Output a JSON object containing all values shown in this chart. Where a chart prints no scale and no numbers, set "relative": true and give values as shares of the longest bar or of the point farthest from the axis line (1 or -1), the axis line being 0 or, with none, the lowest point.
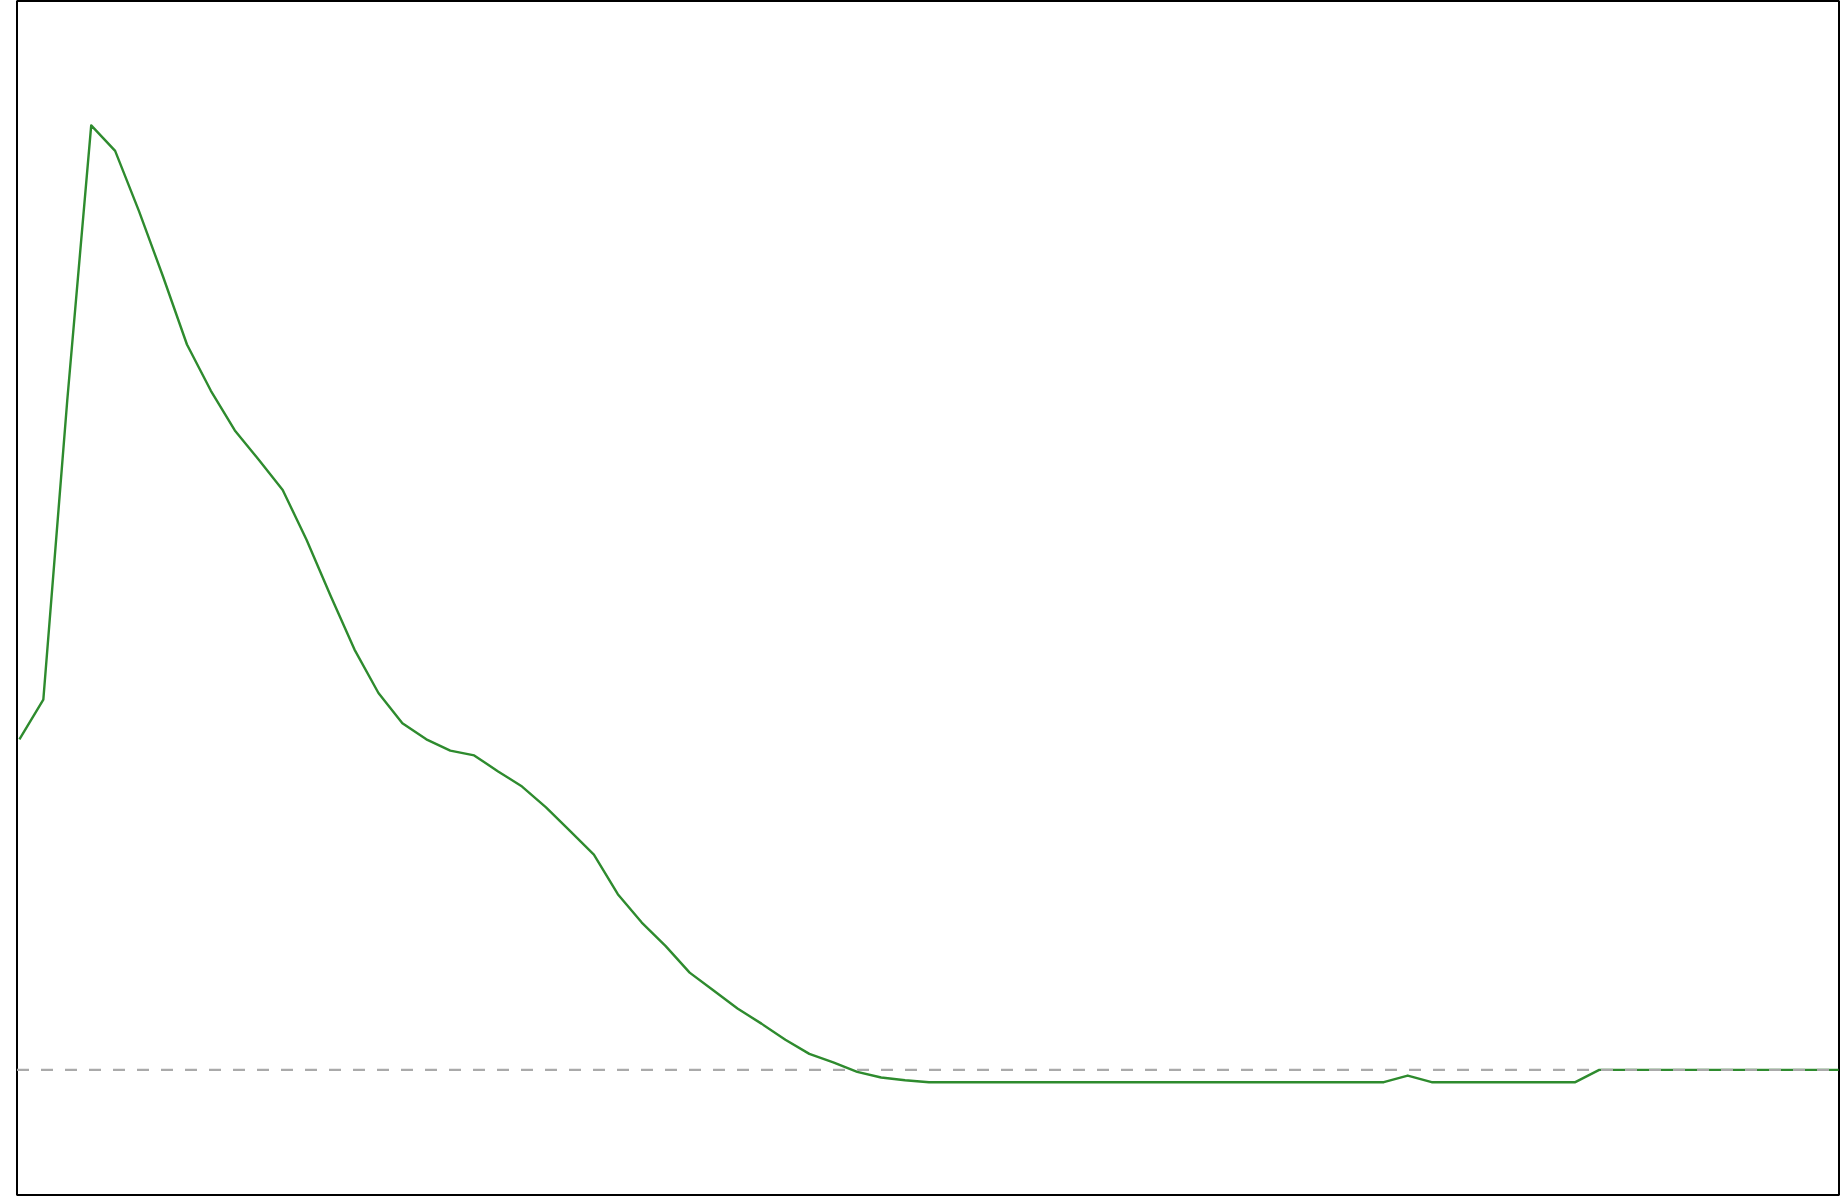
{
  "chart_data": {
    "type": "line",
    "relative": true,
    "categories": [
      null,
      null,
      null,
      null,
      null,
      null,
      null,
      null,
      null,
      null,
      null,
      null,
      null,
      null,
      null,
      null,
      null,
      null,
      null,
      null,
      null,
      null,
      null,
      null,
      null,
      null,
      null,
      null,
      null,
      null,
      null,
      null,
      null,
      null,
      null,
      null,
      null,
      null,
      null,
      null,
      null,
      null,
      null,
      null,
      null,
      null,
      null,
      null,
      null,
      null,
      null,
      null,
      null,
      null,
      null,
      null,
      null,
      null,
      null,
      null,
      null,
      null,
      null,
      null,
      null,
      null,
      null,
      null,
      null,
      null,
      null,
      null,
      null,
      null,
      null,
      null,
      null
    ],
    "series": [
      {
        "color": "#2e8b2e",
        "values": [
          0.35,
          0.392,
          0.709,
          1.0,
          0.973,
          0.909,
          0.84,
          0.768,
          0.719,
          0.677,
          0.646,
          0.614,
          0.561,
          0.502,
          0.445,
          0.399,
          0.367,
          0.35,
          0.338,
          0.333,
          0.316,
          0.3,
          0.278,
          0.253,
          0.228,
          0.186,
          0.156,
          0.131,
          0.103,
          0.084,
          0.065,
          0.049,
          0.032,
          0.017,
          0.008,
          -0.002,
          -0.008,
          -0.011,
          -0.013,
          -0.013,
          -0.013,
          -0.013,
          -0.013,
          -0.013,
          -0.013,
          -0.013,
          -0.013,
          -0.013,
          -0.013,
          -0.013,
          -0.013,
          -0.013,
          -0.013,
          -0.013,
          -0.013,
          -0.013,
          -0.013,
          -0.013,
          -0.006,
          -0.013,
          -0.013,
          -0.013,
          -0.013,
          -0.013,
          -0.013,
          -0.013,
          0,
          0,
          0,
          0,
          0,
          0,
          0,
          0,
          0,
          0,
          0
        ]
      }
    ],
    "ref_lines": [
      {
        "axis": "y",
        "value": 0,
        "color": "#aaaaaa",
        "line_style": "dashed"
      }
    ],
    "marker": "none",
    "line_style": "solid"
  }
}
